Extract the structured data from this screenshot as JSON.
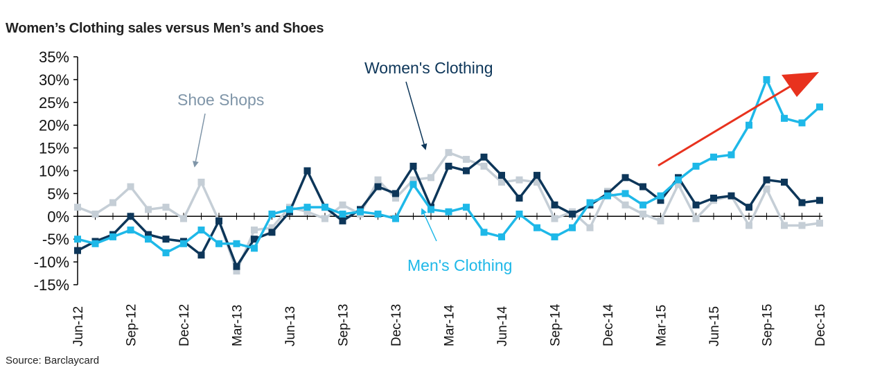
{
  "title": "Women’s Clothing sales versus Men’s and Shoes",
  "source": "Source: Barclaycard",
  "chart_data": {
    "type": "line",
    "x": [
      "Jun-12",
      "Jul-12",
      "Aug-12",
      "Sep-12",
      "Oct-12",
      "Nov-12",
      "Dec-12",
      "Jan-13",
      "Feb-13",
      "Mar-13",
      "Apr-13",
      "May-13",
      "Jun-13",
      "Jul-13",
      "Aug-13",
      "Sep-13",
      "Oct-13",
      "Nov-13",
      "Dec-13",
      "Jan-14",
      "Feb-14",
      "Mar-14",
      "Apr-14",
      "May-14",
      "Jun-14",
      "Jul-14",
      "Aug-14",
      "Sep-14",
      "Oct-14",
      "Nov-14",
      "Dec-14",
      "Jan-15",
      "Feb-15",
      "Mar-15",
      "Apr-15",
      "May-15",
      "Jun-15",
      "Jul-15",
      "Aug-15",
      "Sep-15",
      "Oct-15",
      "Nov-15",
      "Dec-15"
    ],
    "x_tick_labels": [
      "Jun-12",
      "Sep-12",
      "Dec-12",
      "Mar-13",
      "Jun-13",
      "Sep-13",
      "Dec-13",
      "Mar-14",
      "Jun-14",
      "Sep-14",
      "Dec-14",
      "Mar-15",
      "Jun-15",
      "Sep-15",
      "Dec-15"
    ],
    "ylim": [
      -15,
      35
    ],
    "y_ticks": [
      "35%",
      "30%",
      "25%",
      "20%",
      "15%",
      "10%",
      "5%",
      "0%",
      "-5%",
      "-10%",
      "-15%"
    ],
    "series": [
      {
        "name": "Shoe Shops",
        "color": "#c5ced6",
        "values": [
          2,
          0.5,
          3,
          6.5,
          1.5,
          2,
          -0.5,
          7.5,
          -1,
          -12,
          -3,
          -2.5,
          2,
          1,
          -0.5,
          2.5,
          0.5,
          8,
          4,
          8,
          8.5,
          14,
          12.5,
          11,
          7.5,
          8,
          7.5,
          -0.5,
          1,
          -2.5,
          5.5,
          2.5,
          0.5,
          -1,
          7,
          -0.5,
          3.5,
          4.5,
          -2,
          6,
          -2,
          -2,
          -1.5
        ]
      },
      {
        "name": "Women's Clothing",
        "color": "#0d3659",
        "values": [
          -7.5,
          -5.5,
          -4,
          0,
          -4,
          -5,
          -5.5,
          -8.5,
          -1,
          -11,
          -5,
          -3.5,
          1,
          10,
          2,
          -1,
          1.5,
          6.5,
          5,
          11,
          2,
          11,
          10,
          13,
          9,
          4,
          9,
          2.5,
          0.5,
          2.5,
          5,
          8.5,
          6.5,
          3.5,
          8.5,
          2.5,
          4,
          4.5,
          2,
          8,
          7.5,
          3,
          3.5
        ]
      },
      {
        "name": "Men's Clothing",
        "color": "#1eb8e8",
        "values": [
          -5,
          -6,
          -4.5,
          -3,
          -5,
          -8,
          -6,
          -3,
          -6,
          -6,
          -7,
          0.5,
          1.5,
          2,
          2,
          0.5,
          1,
          0.5,
          -0.5,
          7,
          1.5,
          1,
          2,
          -3.5,
          -4.5,
          0.5,
          -2.5,
          -4.5,
          -2.5,
          3,
          4.5,
          5,
          2.5,
          4.5,
          8,
          11,
          13,
          13.5,
          20,
          30,
          21.5,
          20.5,
          24
        ]
      }
    ],
    "annotations": [
      {
        "text": "Shoe Shops",
        "color": "#7f95a8"
      },
      {
        "text": "Women's Clothing",
        "color": "#0d3659"
      },
      {
        "text": "Men's Clothing",
        "color": "#1eb8e8"
      }
    ],
    "trend_arrow_color": "#e8321e"
  }
}
